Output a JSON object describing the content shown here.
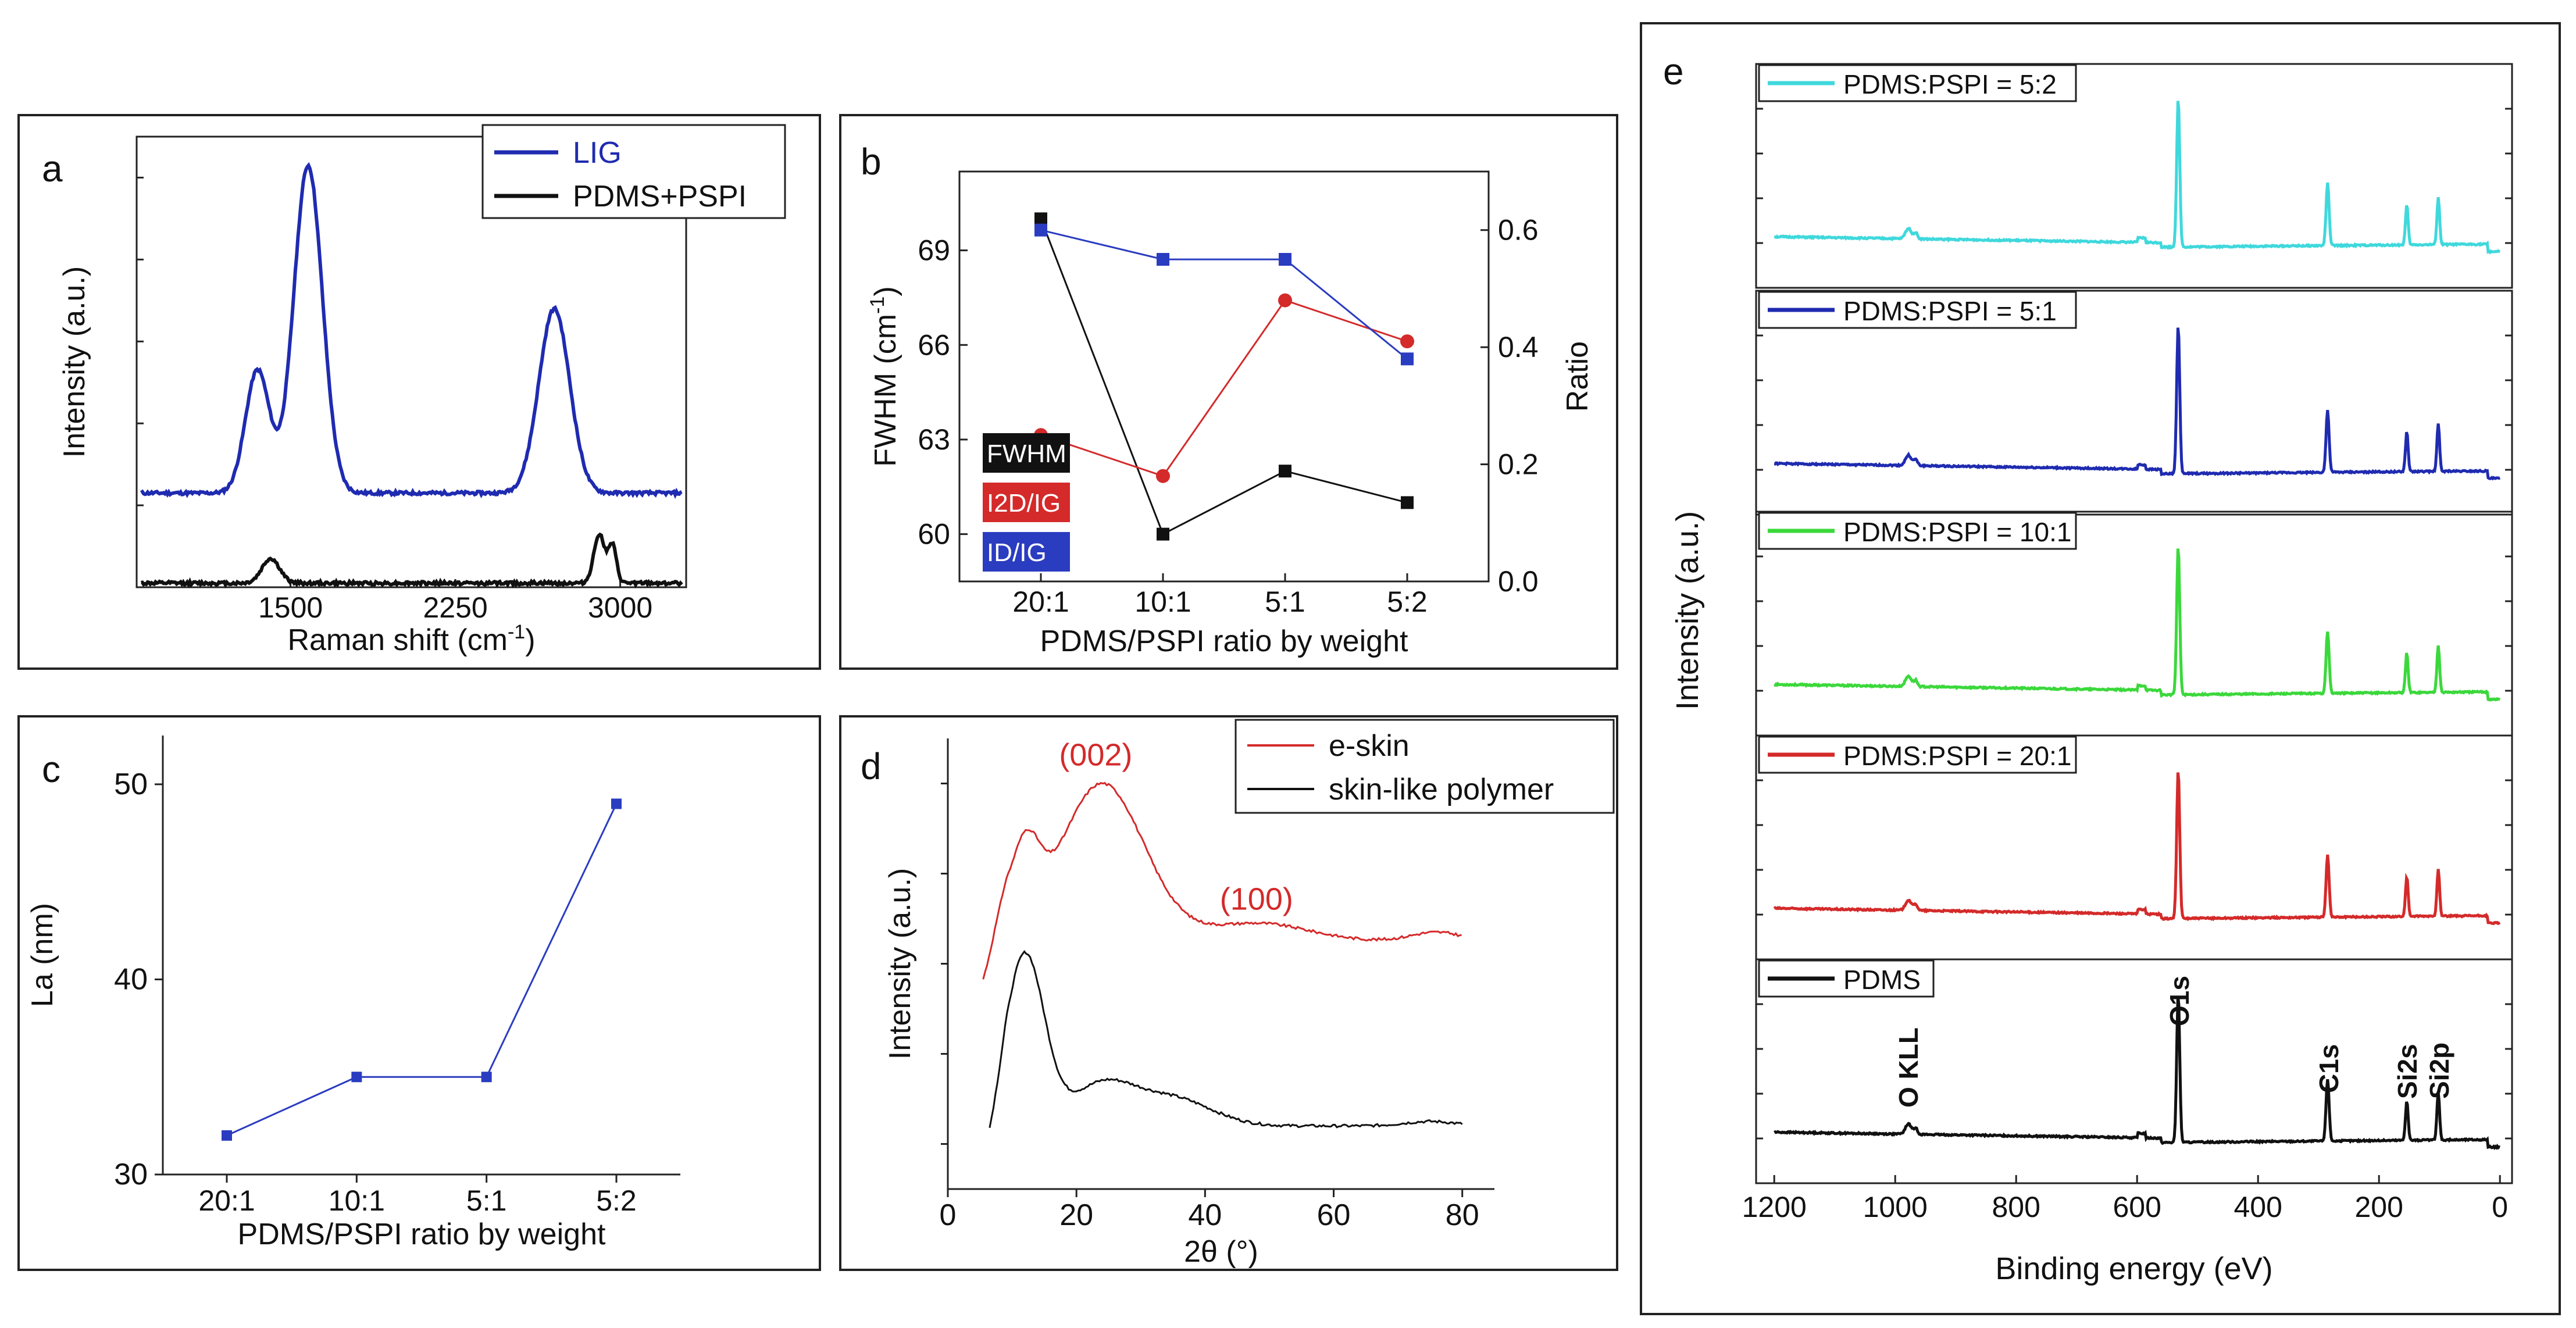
{
  "colors": {
    "blue": "#1f2bb0",
    "black": "#111111",
    "red": "#d42a2a",
    "line_blue": "#2a3cc0",
    "cyan": "#3fd8dc",
    "green": "#3bd83b",
    "frame": "#222222"
  },
  "chart_data": [
    {
      "panel": "a",
      "type": "line",
      "xlabel_main": "Raman shift (cm",
      "xlabel_sup": "-1",
      "xlabel_tail": ")",
      "ylabel": "Intensity (a.u.)",
      "xlim": [
        800,
        3300
      ],
      "ylim": [
        0,
        1.1
      ],
      "xticks": [
        1500,
        2250,
        3000
      ],
      "legend": [
        {
          "label": "LIG",
          "color": "#1f2bb0"
        },
        {
          "label": "PDMS+PSPI",
          "color": "#111111"
        }
      ],
      "series": [
        {
          "name": "LIG",
          "baseline": 0.22,
          "peaks": [
            [
              1350,
              0.3,
              55
            ],
            [
              1580,
              0.8,
              65
            ],
            [
              2700,
              0.45,
              70
            ]
          ]
        },
        {
          "name": "PDMS+PSPI",
          "baseline": 0.0,
          "peaks": [
            [
              1410,
              0.06,
              40
            ],
            [
              2905,
              0.12,
              25
            ],
            [
              2965,
              0.09,
              18
            ]
          ]
        }
      ]
    },
    {
      "panel": "b",
      "type": "line",
      "xlabel": "PDMS/PSPI ratio by weight",
      "ylabel_left_main": "FWHM (cm",
      "ylabel_left_sup": "-1",
      "ylabel_left_tail": ")",
      "ylabel_right": "Ratio",
      "categories": [
        "20:1",
        "10:1",
        "5:1",
        "5:2"
      ],
      "ylim_left": [
        58.5,
        71.5
      ],
      "yticks_left": [
        60,
        63,
        66,
        69
      ],
      "ylim_right": [
        0.0,
        0.7
      ],
      "yticks_right": [
        "0.0",
        "0.2",
        "0.4",
        "0.6"
      ],
      "legend": [
        {
          "label": "FWHM",
          "color": "#111111"
        },
        {
          "label": "I2D/IG",
          "color": "#d42a2a"
        },
        {
          "label": "ID/IG",
          "color": "#1f2bb0"
        }
      ],
      "series": [
        {
          "name": "FWHM",
          "axis": "left",
          "values": [
            70,
            60,
            62,
            61
          ]
        },
        {
          "name": "I2D/IG",
          "axis": "right",
          "values": [
            0.25,
            0.18,
            0.48,
            0.41
          ]
        },
        {
          "name": "ID/IG",
          "axis": "right",
          "values": [
            0.6,
            0.55,
            0.55,
            0.38
          ]
        }
      ]
    },
    {
      "panel": "c",
      "type": "line",
      "xlabel": "PDMS/PSPI ratio by weight",
      "ylabel": "La (nm)",
      "categories": [
        "20:1",
        "10:1",
        "5:1",
        "5:2"
      ],
      "ylim": [
        30,
        52.5
      ],
      "yticks": [
        30,
        40,
        50
      ],
      "values": [
        32,
        35,
        35,
        49
      ]
    },
    {
      "panel": "d",
      "type": "line",
      "xlabel": "2θ (°)",
      "ylabel": "Intensity (a.u.)",
      "xlim": [
        0,
        85
      ],
      "xticks": [
        0,
        20,
        40,
        60,
        80
      ],
      "ylim": [
        0,
        1.0
      ],
      "legend": [
        {
          "label": "e-skin",
          "color": "#d42a2a"
        },
        {
          "label": "skin-like polymer",
          "color": "#111111"
        }
      ],
      "annotations": [
        {
          "text": "(002)",
          "x": 23,
          "y": 0.94
        },
        {
          "text": "(100)",
          "x": 48,
          "y": 0.62
        }
      ],
      "series": [
        {
          "name": "e-skin",
          "baseline": 0.55,
          "peaks": [
            [
              12,
              0.18,
              2.2
            ],
            [
              24,
              0.35,
              6.5
            ],
            [
              8,
              0.05,
              1.5
            ],
            [
              48,
              0.04,
              8
            ],
            [
              76,
              0.02,
              4
            ]
          ]
        },
        {
          "name": "skin-like polymer",
          "baseline": 0.14,
          "peaks": [
            [
              12,
              0.38,
              3
            ],
            [
              24,
              0.09,
              5
            ],
            [
              35,
              0.06,
              6
            ],
            [
              75,
              0.01,
              4
            ]
          ]
        }
      ]
    },
    {
      "panel": "e",
      "type": "line",
      "xlabel": "Binding energy (eV)",
      "ylabel": "Intensity (a.u.)",
      "xlim": [
        1230,
        -20
      ],
      "xticks": [
        1200,
        1000,
        800,
        600,
        400,
        200,
        0
      ],
      "peak_labels": [
        "O KLL",
        "O1s",
        "C1s",
        "Si2s",
        "Si2p"
      ],
      "subplots": [
        {
          "label": "PDMS:PSPI = 5:2",
          "color": "#3fd8dc"
        },
        {
          "label": "PDMS:PSPI = 5:1",
          "color": "#1f2bb0"
        },
        {
          "label": "PDMS:PSPI = 10:1",
          "color": "#3bd83b"
        },
        {
          "label": "PDMS:PSPI = 20:1",
          "color": "#d42a2a"
        },
        {
          "label": "PDMS",
          "color": "#111111"
        }
      ]
    }
  ]
}
